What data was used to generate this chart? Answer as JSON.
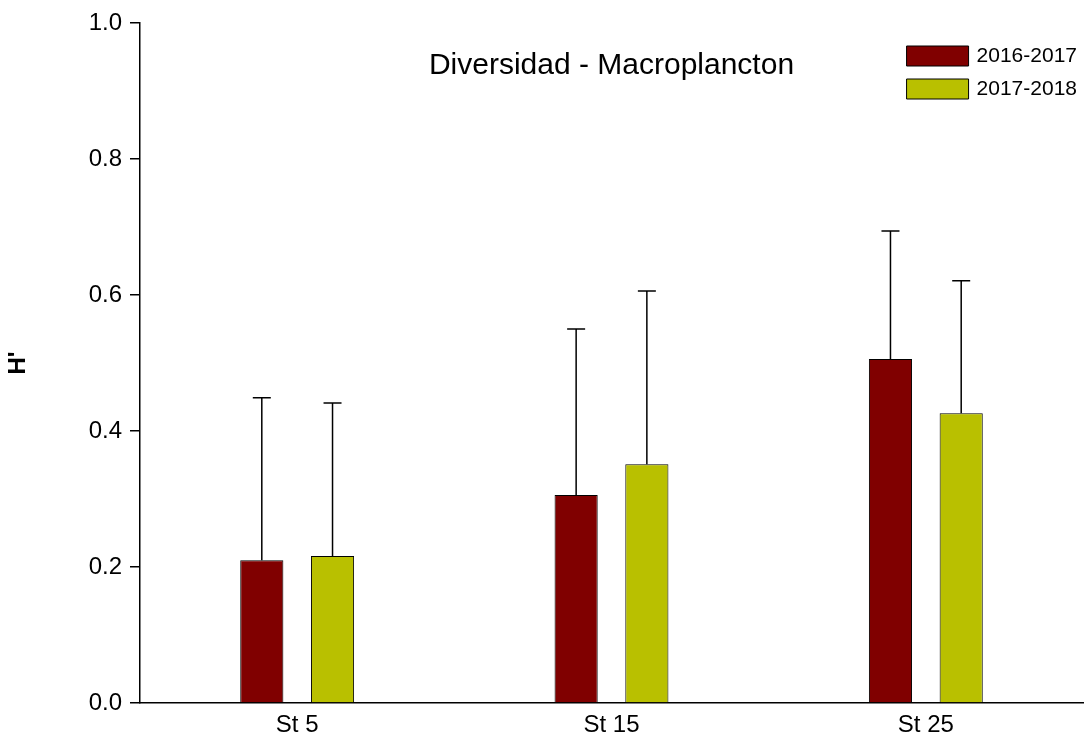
{
  "chart_data": {
    "type": "bar",
    "title": "Diversidad - Macroplancton",
    "ylabel": "H'",
    "categories": [
      "St 5",
      "St 15",
      "St 25"
    ],
    "series": [
      {
        "name": "2016-2017",
        "color": "#800000",
        "values": [
          0.21,
          0.306,
          0.506
        ],
        "errors": [
          [
            0.21,
            0.449
          ],
          [
            0.306,
            0.55
          ],
          [
            0.506,
            0.694
          ]
        ]
      },
      {
        "name": "2017-2018",
        "color": "#b9c000",
        "values": [
          0.216,
          0.351,
          0.426
        ],
        "errors": [
          [
            0.216,
            0.441
          ],
          [
            0.351,
            0.606
          ],
          [
            0.426,
            0.621
          ]
        ]
      }
    ],
    "ylim": [
      0,
      1
    ],
    "yticks": [
      {
        "value": 0,
        "label": "0.0"
      },
      0.2,
      0.4,
      0.6,
      0.8,
      {
        "value": 1,
        "label": "1.0"
      }
    ],
    "grid": false,
    "legend": "top right"
  }
}
